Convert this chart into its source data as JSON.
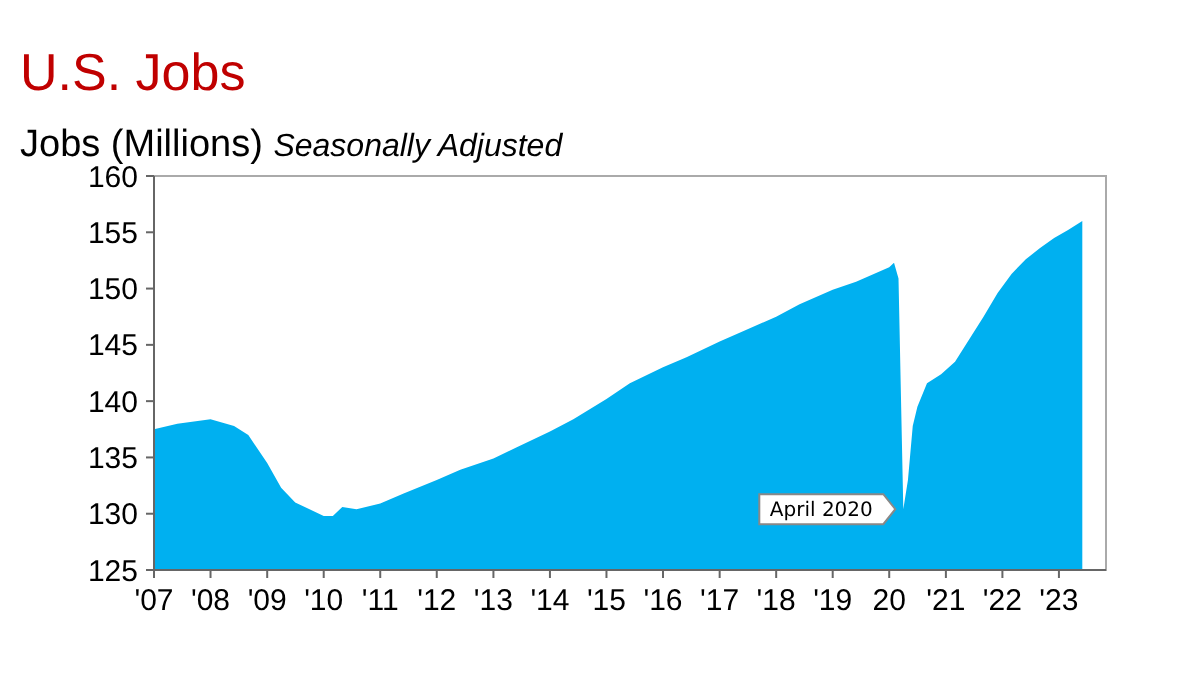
{
  "chart_data": {
    "type": "area",
    "title": "U.S. Jobs",
    "ylabel": "Jobs (Millions)",
    "subtitle": "Seasonally Adjusted",
    "x": [
      "2007-01",
      "2007-06",
      "2008-01",
      "2008-06",
      "2008-09",
      "2009-01",
      "2009-04",
      "2009-07",
      "2010-01",
      "2010-03",
      "2010-05",
      "2010-08",
      "2011-01",
      "2011-06",
      "2012-01",
      "2012-06",
      "2013-01",
      "2013-06",
      "2014-01",
      "2014-06",
      "2015-01",
      "2015-06",
      "2016-01",
      "2016-06",
      "2017-01",
      "2017-06",
      "2018-01",
      "2018-06",
      "2019-01",
      "2019-06",
      "2020-01",
      "2020-02",
      "2020-03",
      "2020-04",
      "2020-05",
      "2020-06",
      "2020-07",
      "2020-09",
      "2020-12",
      "2021-03",
      "2021-06",
      "2021-09",
      "2021-12",
      "2022-03",
      "2022-06",
      "2022-09",
      "2022-12",
      "2023-03",
      "2023-06"
    ],
    "series": [
      {
        "color": "#00b0f0",
        "values": [
          137.5,
          138.0,
          138.4,
          137.8,
          137.0,
          134.5,
          132.3,
          131.0,
          129.8,
          129.8,
          130.6,
          130.4,
          130.9,
          131.8,
          133.0,
          133.9,
          134.9,
          135.9,
          137.3,
          138.4,
          140.2,
          141.6,
          143.0,
          143.9,
          145.3,
          146.2,
          147.5,
          148.6,
          149.9,
          150.6,
          151.9,
          152.3,
          150.9,
          130.4,
          133.0,
          137.8,
          139.5,
          141.6,
          142.4,
          143.5,
          145.5,
          147.5,
          149.6,
          151.3,
          152.6,
          153.6,
          154.5,
          155.2,
          156.0
        ]
      }
    ],
    "annotations": [
      {
        "text": "April 2020",
        "x": "2020-04",
        "y": 130.4
      }
    ],
    "xlim": [
      "2007-01",
      "2023-11"
    ],
    "xticks": [
      {
        "value": "2007-01",
        "label": "'07"
      },
      {
        "value": "2008-01",
        "label": "'08"
      },
      {
        "value": "2009-01",
        "label": "'09"
      },
      {
        "value": "2010-01",
        "label": "'10"
      },
      {
        "value": "2011-01",
        "label": "'11"
      },
      {
        "value": "2012-01",
        "label": "'12"
      },
      {
        "value": "2013-01",
        "label": "'13"
      },
      {
        "value": "2014-01",
        "label": "'14"
      },
      {
        "value": "2015-01",
        "label": "'15"
      },
      {
        "value": "2016-01",
        "label": "'16"
      },
      {
        "value": "2017-01",
        "label": "'17"
      },
      {
        "value": "2018-01",
        "label": "'18"
      },
      {
        "value": "2019-01",
        "label": "'19"
      },
      {
        "value": "2020-01",
        "label": "20"
      },
      {
        "value": "2021-01",
        "label": "'21"
      },
      {
        "value": "2022-01",
        "label": "'22"
      },
      {
        "value": "2023-01",
        "label": "'23"
      }
    ],
    "ylim": [
      125,
      160
    ],
    "yticks": [
      125,
      130,
      135,
      140,
      145,
      150,
      155,
      160
    ],
    "grid": false
  }
}
